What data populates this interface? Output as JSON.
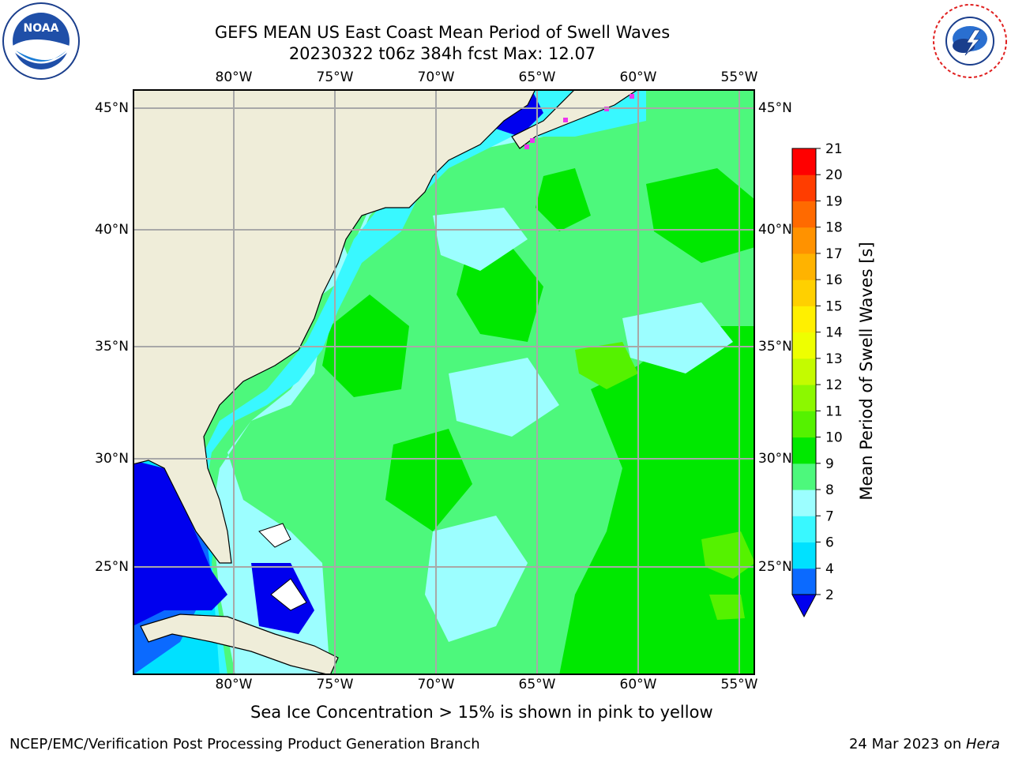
{
  "title": {
    "line1": "GEFS MEAN US East Coast Mean Period of Swell Waves",
    "line2": "20230322 t06z 384h fcst   Max: 12.07"
  },
  "logos": {
    "left": {
      "name": "noaa-logo",
      "text": "NOAA"
    },
    "right": {
      "name": "nws-logo",
      "text": "NATIONAL WEATHER SERVICE"
    }
  },
  "map": {
    "lon_labels": [
      "80°W",
      "75°W",
      "70°W",
      "65°W",
      "60°W",
      "55°W"
    ],
    "lat_labels": [
      "45°N",
      "40°N",
      "35°N",
      "30°N",
      "25°N"
    ],
    "colors": {
      "land": "#efedd9",
      "gridline": "#a8a8a8",
      "ice": "#ee33ee"
    }
  },
  "colorbar": {
    "title": "Mean Period of Swell Waves [s]",
    "levels": [
      "2",
      "4",
      "6",
      "7",
      "8",
      "9",
      "10",
      "11",
      "12",
      "13",
      "14",
      "15",
      "16",
      "17",
      "18",
      "19",
      "20",
      "21"
    ],
    "colors": [
      "#0b6aff",
      "#00e1ff",
      "#39f8ff",
      "#9cfeff",
      "#4df87c",
      "#00e800",
      "#55f200",
      "#8cf800",
      "#c4fb00",
      "#eeff00",
      "#fff000",
      "#ffd000",
      "#ffb300",
      "#ff9200",
      "#ff6a00",
      "#ff3d00",
      "#ff0000"
    ],
    "under_color": "#0000ee"
  },
  "note": "Sea Ice Concentration > 15% is shown in pink to yellow",
  "footer": {
    "left": "NCEP/EMC/Verification Post Processing Product Generation Branch",
    "right_date": "24 Mar 2023 on ",
    "right_host": "Hera"
  }
}
